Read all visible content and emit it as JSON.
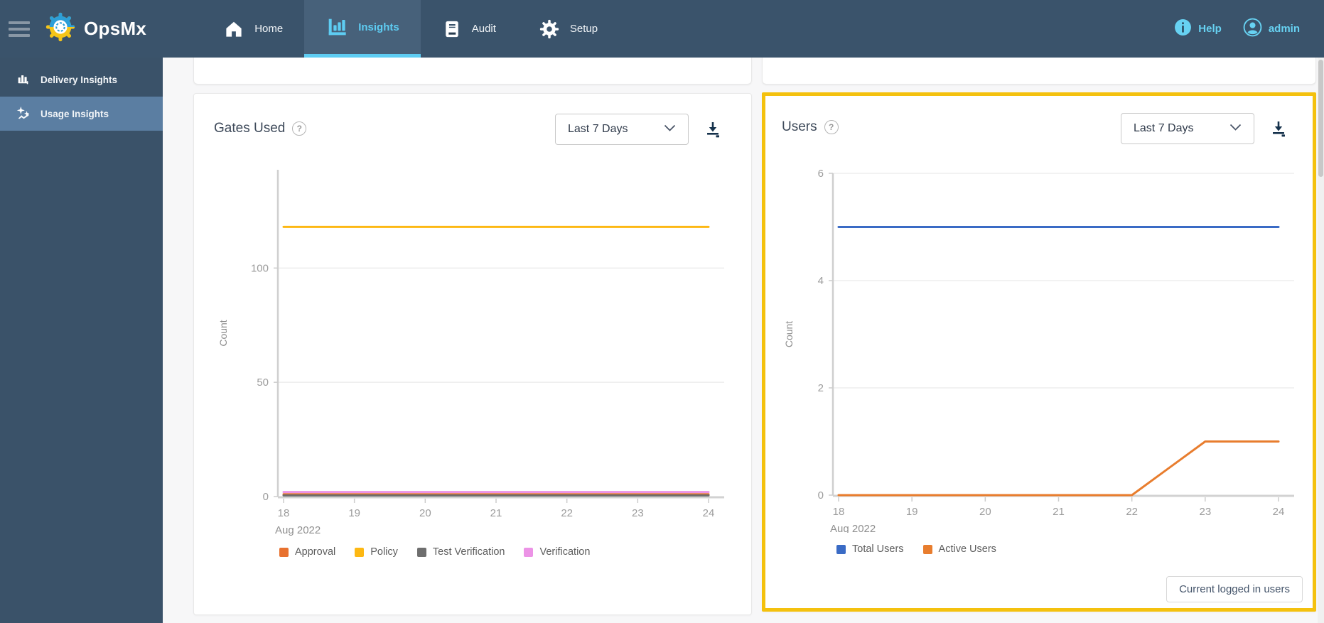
{
  "nav": {
    "brand": "OpsMx",
    "tabs": [
      {
        "label": "Home",
        "active": false
      },
      {
        "label": "Insights",
        "active": true
      },
      {
        "label": "Audit",
        "active": false
      },
      {
        "label": "Setup",
        "active": false
      }
    ],
    "help_label": "Help",
    "user_label": "admin"
  },
  "sidebar": {
    "items": [
      {
        "label": "Delivery Insights",
        "active": false
      },
      {
        "label": "Usage Insights",
        "active": true
      }
    ]
  },
  "cards": {
    "gates": {
      "title": "Gates Used",
      "help_glyph": "?",
      "range_selector": "Last 7 Days",
      "chart_data": {
        "type": "line",
        "x": [
          18,
          19,
          20,
          21,
          22,
          23,
          24
        ],
        "xlabel": "Aug 2022",
        "ylabel": "Count",
        "ylim": [
          0,
          143
        ],
        "yticks": [
          0,
          50,
          100
        ],
        "grid": true,
        "legend_position": "bottom",
        "series": [
          {
            "name": "Approval",
            "color": "#e8712f",
            "values": [
              1,
              1,
              1,
              1,
              1,
              1,
              1
            ]
          },
          {
            "name": "Policy",
            "color": "#fdb813",
            "values": [
              118,
              118,
              118,
              118,
              118,
              118,
              118
            ]
          },
          {
            "name": "Test Verification",
            "color": "#6e6e6e",
            "values": [
              0.5,
              0.5,
              0.5,
              0.5,
              0.5,
              0.5,
              0.5
            ]
          },
          {
            "name": "Verification",
            "color": "#ec93e6",
            "values": [
              2,
              2,
              2,
              2,
              2,
              2,
              2
            ]
          }
        ]
      }
    },
    "users": {
      "title": "Users",
      "help_glyph": "?",
      "range_selector": "Last 7 Days",
      "footer_button": "Current logged in users",
      "highlight_color": "#f4c10e",
      "chart_data": {
        "type": "line",
        "x": [
          18,
          19,
          20,
          21,
          22,
          23,
          24
        ],
        "xlabel": "Aug 2022",
        "ylabel": "Count",
        "ylim": [
          0,
          6
        ],
        "yticks": [
          0,
          2,
          4,
          6
        ],
        "grid": true,
        "legend_position": "bottom",
        "series": [
          {
            "name": "Total Users",
            "color": "#3a6bc5",
            "values": [
              5,
              5,
              5,
              5,
              5,
              5,
              5
            ]
          },
          {
            "name": "Active Users",
            "color": "#e87d2e",
            "values": [
              0,
              0,
              0,
              0,
              0,
              1,
              1
            ]
          }
        ]
      }
    }
  }
}
